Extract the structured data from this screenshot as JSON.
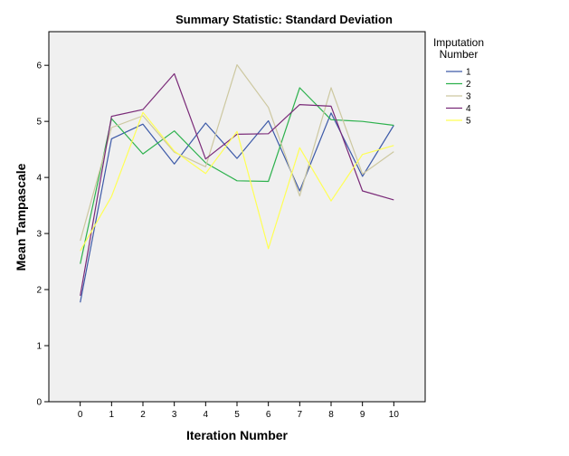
{
  "chart_data": {
    "type": "line",
    "title": "Summary Statistic: Standard Deviation",
    "xlabel": "Iteration Number",
    "ylabel": "Mean Tampascale",
    "x": [
      0,
      1,
      2,
      3,
      4,
      5,
      6,
      7,
      8,
      9,
      10
    ],
    "xlim": [
      -1,
      11
    ],
    "ylim": [
      0,
      6.6
    ],
    "yticks": [
      0,
      1,
      2,
      3,
      4,
      5,
      6
    ],
    "legend_title": "Imputation\nNumber",
    "legend_position": "right",
    "series": [
      {
        "name": "1",
        "color": "#3d5aa8",
        "values": [
          1.77,
          4.69,
          4.95,
          4.24,
          4.97,
          4.34,
          5.01,
          3.76,
          5.15,
          4.02,
          4.93
        ]
      },
      {
        "name": "2",
        "color": "#2db14d",
        "values": [
          2.46,
          5.05,
          4.42,
          4.83,
          4.26,
          3.94,
          3.93,
          5.6,
          5.03,
          5.0,
          4.93
        ]
      },
      {
        "name": "3",
        "color": "#cdc8a0",
        "values": [
          2.87,
          4.89,
          5.1,
          4.45,
          4.19,
          6.01,
          5.25,
          3.67,
          5.6,
          4.06,
          4.46
        ]
      },
      {
        "name": "4",
        "color": "#7a2a78",
        "values": [
          1.89,
          5.09,
          5.21,
          5.85,
          4.33,
          4.77,
          4.78,
          5.3,
          5.27,
          3.76,
          3.6
        ]
      },
      {
        "name": "5",
        "color": "#ffff55",
        "values": [
          2.69,
          3.66,
          5.16,
          4.47,
          4.07,
          4.82,
          2.73,
          4.53,
          3.58,
          4.41,
          4.57
        ]
      }
    ]
  }
}
